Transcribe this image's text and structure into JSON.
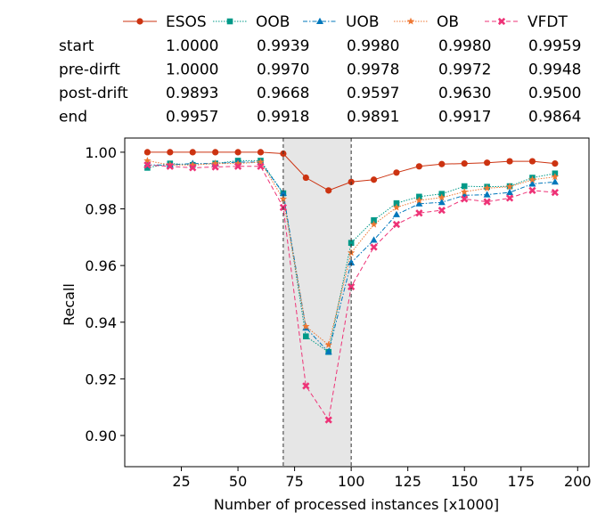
{
  "chart_data": {
    "type": "line",
    "xlabel": "Number of processed instances [x1000]",
    "ylabel": "Recall",
    "xlim": [
      0,
      205
    ],
    "ylim": [
      0.889,
      1.005
    ],
    "xticks": [
      25,
      50,
      75,
      100,
      125,
      150,
      175,
      200
    ],
    "xtick_labels": [
      "25",
      "50",
      "75",
      "100",
      "125",
      "150",
      "175",
      "200"
    ],
    "yticks": [
      0.9,
      0.92,
      0.94,
      0.96,
      0.98,
      1.0
    ],
    "ytick_labels": [
      "0.90",
      "0.92",
      "0.94",
      "0.96",
      "0.98",
      "1.00"
    ],
    "drift_region": [
      70,
      100
    ],
    "grid": false,
    "legend": "top",
    "markers_x": [
      10,
      20,
      30,
      40,
      50,
      60,
      70,
      80,
      90,
      100,
      110,
      120,
      130,
      140,
      150,
      160,
      170,
      180,
      190
    ],
    "series": [
      {
        "name": "ESOS",
        "color": "#cc3311",
        "marker": "circle",
        "style": "solid",
        "values": [
          1.0,
          1.0,
          1.0,
          1.0,
          1.0,
          1.0,
          0.9995,
          0.991,
          0.9865,
          0.9895,
          0.9903,
          0.9928,
          0.995,
          0.9958,
          0.996,
          0.9963,
          0.9968,
          0.9968,
          0.996
        ]
      },
      {
        "name": "OOB",
        "color": "#009988",
        "marker": "square",
        "style": "dotted",
        "values": [
          0.9945,
          0.996,
          0.9955,
          0.996,
          0.997,
          0.997,
          0.9855,
          0.935,
          0.9295,
          0.968,
          0.976,
          0.982,
          0.9843,
          0.9853,
          0.988,
          0.9878,
          0.988,
          0.991,
          0.9925
        ]
      },
      {
        "name": "UOB",
        "color": "#0077bb",
        "marker": "triangle",
        "style": "dashdot",
        "values": [
          0.9955,
          0.9955,
          0.996,
          0.996,
          0.9965,
          0.9965,
          0.9855,
          0.938,
          0.9295,
          0.961,
          0.969,
          0.978,
          0.9818,
          0.9823,
          0.9848,
          0.985,
          0.9858,
          0.9888,
          0.9895
        ]
      },
      {
        "name": "OB",
        "color": "#ee7733",
        "marker": "star",
        "style": "dotted",
        "values": [
          0.997,
          0.9955,
          0.9955,
          0.996,
          0.996,
          0.9965,
          0.9835,
          0.9385,
          0.932,
          0.9645,
          0.9745,
          0.9805,
          0.983,
          0.984,
          0.986,
          0.9873,
          0.9878,
          0.9903,
          0.9913
        ]
      },
      {
        "name": "VFDT",
        "color": "#ee3377",
        "marker": "x",
        "style": "dashed",
        "values": [
          0.9955,
          0.995,
          0.9945,
          0.9948,
          0.995,
          0.995,
          0.9805,
          0.9175,
          0.9055,
          0.9525,
          0.9665,
          0.9745,
          0.9785,
          0.9795,
          0.9835,
          0.9825,
          0.9838,
          0.9865,
          0.9858
        ]
      }
    ],
    "table": {
      "rows": [
        {
          "label": "start",
          "values": [
            "1.0000",
            "0.9939",
            "0.9980",
            "0.9980",
            "0.9959"
          ]
        },
        {
          "label": "pre-dirft",
          "values": [
            "1.0000",
            "0.9970",
            "0.9978",
            "0.9972",
            "0.9948"
          ]
        },
        {
          "label": "post-drift",
          "values": [
            "0.9893",
            "0.9668",
            "0.9597",
            "0.9630",
            "0.9500"
          ]
        },
        {
          "label": "end",
          "values": [
            "0.9957",
            "0.9918",
            "0.9891",
            "0.9917",
            "0.9864"
          ]
        }
      ]
    }
  }
}
